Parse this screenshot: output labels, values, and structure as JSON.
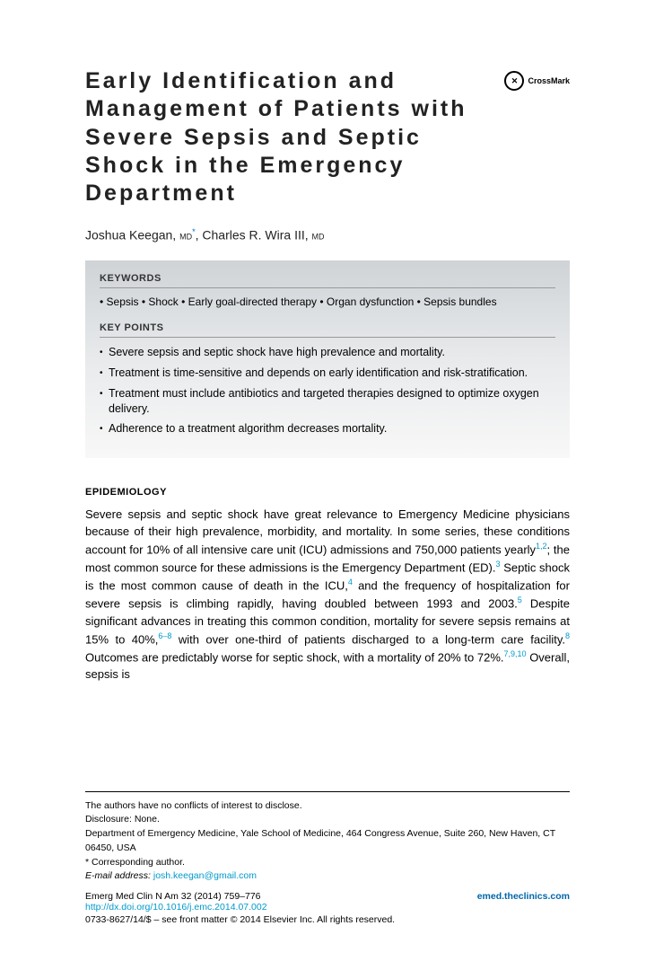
{
  "title": "Early Identification and Management of Patients with Severe Sepsis and Septic Shock in the Emergency Department",
  "crossmark": "CrossMark",
  "authors": {
    "a1_name": "Joshua Keegan,",
    "a1_deg": "MD",
    "a2_name": "Charles R. Wira III,",
    "a2_deg": "MD",
    "sep": ", "
  },
  "keywords_head": "KEYWORDS",
  "keywords": "• Sepsis • Shock • Early goal-directed therapy • Organ dysfunction • Sepsis bundles",
  "keypoints_head": "KEY POINTS",
  "kp": {
    "0": "Severe sepsis and septic shock have high prevalence and mortality.",
    "1": "Treatment is time-sensitive and depends on early identification and risk-stratification.",
    "2": "Treatment must include antibiotics and targeted therapies designed to optimize oxygen delivery.",
    "3": "Adherence to a treatment algorithm decreases mortality."
  },
  "epi_head": "EPIDEMIOLOGY",
  "epi": {
    "t0": "Severe sepsis and septic shock have great relevance to Emergency Medicine physicians because of their high prevalence, morbidity, and mortality. In some series, these conditions account for 10% of all intensive care unit (ICU) admissions and 750,000 patients yearly",
    "s0": "1,2",
    "t1": "; the most common source for these admissions is the Emergency Department (ED).",
    "s1": "3",
    "t2": " Septic shock is the most common cause of death in the ICU,",
    "s2": "4",
    "t3": " and the frequency of hospitalization for severe sepsis is climbing rapidly, having doubled between 1993 and 2003.",
    "s3": "5",
    "t4": " Despite significant advances in treating this common condition, mortality for severe sepsis remains at 15% to 40%,",
    "s4": "6–8",
    "t5": " with over one-third of patients discharged to a long-term care facility.",
    "s5": "8",
    "t6": " Outcomes are predictably worse for septic shock, with a mortality of 20% to 72%.",
    "s6": "7,9,10",
    "t7": " Overall, sepsis is"
  },
  "foot": {
    "l0": "The authors have no conflicts of interest to disclose.",
    "l1": "Disclosure: None.",
    "l2": "Department of Emergency Medicine, Yale School of Medicine, 464 Congress Avenue, Suite 260, New Haven, CT 06450, USA",
    "l3": "* Corresponding author.",
    "l4_label": "E-mail address: ",
    "l4_email": "josh.keegan@gmail.com"
  },
  "journal": {
    "cite": "Emerg Med Clin N Am 32 (2014) 759–776",
    "doi": "http://dx.doi.org/10.1016/j.emc.2014.07.002",
    "site": "emed.theclinics.com",
    "copyright": "0733-8627/14/$ – see front matter © 2014 Elsevier Inc. All rights reserved."
  },
  "colors": {
    "link": "#0099cc"
  }
}
